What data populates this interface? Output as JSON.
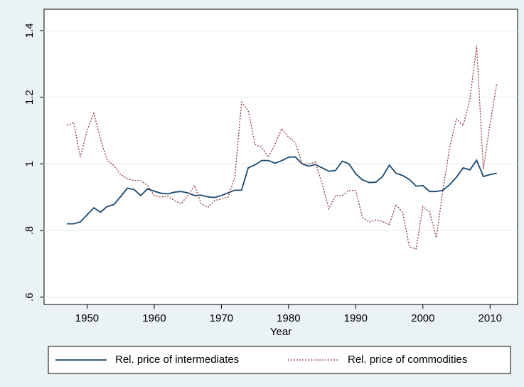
{
  "chart_data": {
    "type": "line",
    "x_label": "Year",
    "x": [
      1947,
      1948,
      1949,
      1950,
      1951,
      1952,
      1953,
      1954,
      1955,
      1956,
      1957,
      1958,
      1959,
      1960,
      1961,
      1962,
      1963,
      1964,
      1965,
      1966,
      1967,
      1968,
      1969,
      1970,
      1971,
      1972,
      1973,
      1974,
      1975,
      1976,
      1977,
      1978,
      1979,
      1980,
      1981,
      1982,
      1983,
      1984,
      1985,
      1986,
      1987,
      1988,
      1989,
      1990,
      1991,
      1992,
      1993,
      1994,
      1995,
      1996,
      1997,
      1998,
      1999,
      2000,
      2001,
      2002,
      2003,
      2004,
      2005,
      2006,
      2007,
      2008,
      2009,
      2010,
      2011
    ],
    "series": [
      {
        "name": "Rel. price of intermediates",
        "color": "#1a476f",
        "dash": "solid",
        "values": [
          0.82,
          0.82,
          0.826,
          0.847,
          0.868,
          0.855,
          0.872,
          0.878,
          0.902,
          0.927,
          0.923,
          0.905,
          0.925,
          0.918,
          0.912,
          0.91,
          0.915,
          0.917,
          0.913,
          0.905,
          0.906,
          0.901,
          0.899,
          0.905,
          0.913,
          0.921,
          0.921,
          0.988,
          0.997,
          1.01,
          1.01,
          1.002,
          1.01,
          1.02,
          1.021,
          1.0,
          0.993,
          0.998,
          0.988,
          0.978,
          0.98,
          1.008,
          1.0,
          0.97,
          0.952,
          0.944,
          0.945,
          0.962,
          0.996,
          0.972,
          0.965,
          0.953,
          0.933,
          0.935,
          0.917,
          0.917,
          0.921,
          0.938,
          0.96,
          0.988,
          0.982,
          1.011,
          0.962,
          0.968,
          0.972
        ]
      },
      {
        "name": "Rel. price of commodities",
        "color": "#90353b",
        "dash": "dotted",
        "values": [
          1.115,
          1.125,
          1.02,
          1.1,
          1.152,
          1.075,
          1.01,
          0.995,
          0.968,
          0.955,
          0.95,
          0.95,
          0.935,
          0.905,
          0.9,
          0.903,
          0.89,
          0.88,
          0.905,
          0.935,
          0.88,
          0.87,
          0.89,
          0.895,
          0.9,
          0.96,
          1.185,
          1.16,
          1.058,
          1.05,
          1.02,
          1.06,
          1.105,
          1.08,
          1.065,
          1.0,
          1.0,
          1.005,
          0.94,
          0.865,
          0.905,
          0.905,
          0.92,
          0.92,
          0.84,
          0.825,
          0.832,
          0.827,
          0.818,
          0.878,
          0.853,
          0.75,
          0.745,
          0.872,
          0.855,
          0.778,
          0.925,
          1.05,
          1.135,
          1.115,
          1.195,
          1.355,
          0.985,
          1.12,
          1.24
        ]
      }
    ],
    "xlim": [
      1943.6,
      2014.1
    ],
    "ylim": [
      0.578,
      1.464
    ],
    "xticks": [
      1950,
      1960,
      1970,
      1980,
      1990,
      2000,
      2010
    ],
    "yticks": [
      {
        "value": 0.6,
        "label": ".6"
      },
      {
        "value": 0.8,
        "label": ".8"
      },
      1,
      1.2,
      1.4
    ],
    "grid": true
  }
}
